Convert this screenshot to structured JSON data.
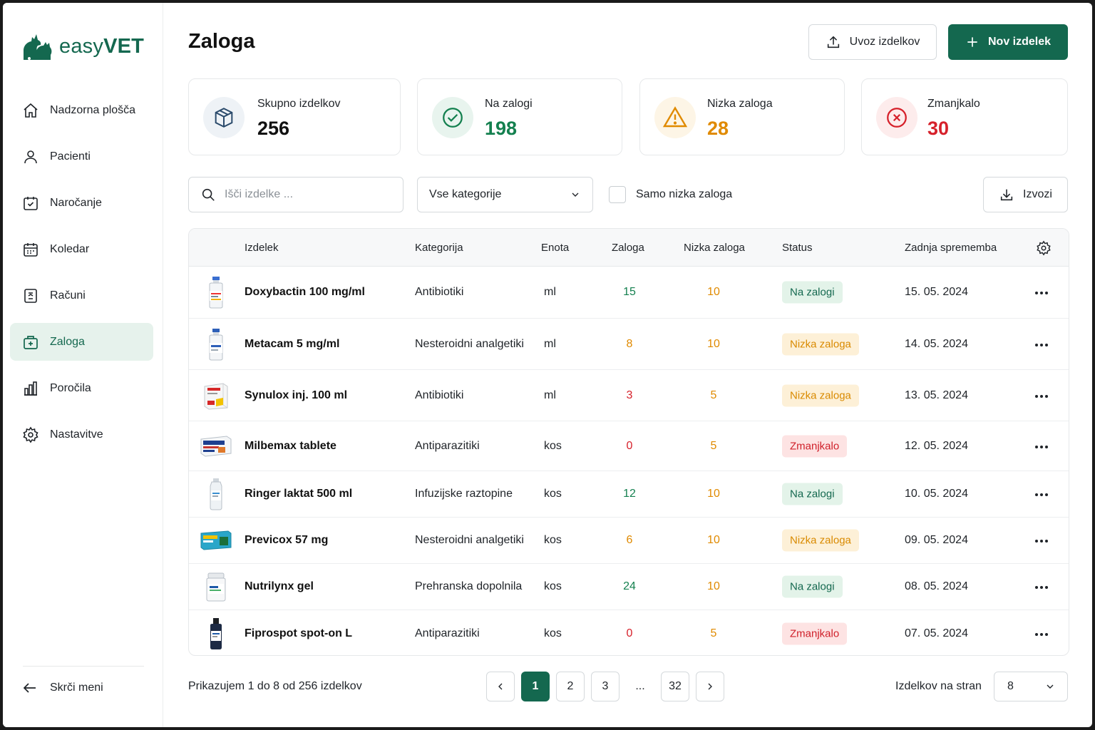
{
  "brand": {
    "name_part1": "easy",
    "name_part2": "VET",
    "accent": "#14684f"
  },
  "nav": {
    "items": [
      {
        "label": "Nadzorna plošča",
        "icon": "home-icon"
      },
      {
        "label": "Pacienti",
        "icon": "user-icon"
      },
      {
        "label": "Naročanje",
        "icon": "calendar-check-icon"
      },
      {
        "label": "Koledar",
        "icon": "calendar-icon"
      },
      {
        "label": "Računi",
        "icon": "invoice-icon"
      },
      {
        "label": "Zaloga",
        "icon": "inventory-box-icon"
      },
      {
        "label": "Poročila",
        "icon": "bar-chart-icon"
      },
      {
        "label": "Nastavitve",
        "icon": "gear-icon"
      }
    ],
    "active": "Zaloga",
    "collapse_label": "Skrči meni"
  },
  "header": {
    "title": "Zaloga",
    "import_label": "Uvoz izdelkov",
    "new_label": "Nov izdelek"
  },
  "stats": [
    {
      "label": "Skupno izdelkov",
      "value": "256",
      "icon": "box-icon",
      "color": "#1f2328"
    },
    {
      "label": "Na zalogi",
      "value": "198",
      "icon": "check-circle-icon",
      "color": "#14804f"
    },
    {
      "label": "Nizka zaloga",
      "value": "28",
      "icon": "warning-icon",
      "color": "#e08a00"
    },
    {
      "label": "Zmanjkalo",
      "value": "30",
      "icon": "x-circle-icon",
      "color": "#d6212b"
    }
  ],
  "toolbar": {
    "search_placeholder": "Išči izdelke ...",
    "category_value": "Vse kategorije",
    "low_only_label": "Samo nizka zaloga",
    "export_label": "Izvozi"
  },
  "table": {
    "columns": [
      "Izdelek",
      "Kategorija",
      "Enota",
      "Zaloga",
      "Nizka zaloga",
      "Status",
      "Zadnja sprememba"
    ],
    "rows": [
      {
        "name": "Doxybactin 100 mg/ml",
        "category": "Antibiotiki",
        "unit": "ml",
        "stock": "15",
        "low": "10",
        "status": "Na zalogi",
        "date": "15. 05. 2024"
      },
      {
        "name": "Metacam 5 mg/ml",
        "category": "Nesteroidni analgetiki",
        "unit": "ml",
        "stock": "8",
        "low": "10",
        "status": "Nizka zaloga",
        "date": "14. 05. 2024"
      },
      {
        "name": "Synulox inj. 100 ml",
        "category": "Antibiotiki",
        "unit": "ml",
        "stock": "3",
        "low": "5",
        "status": "Nizka zaloga",
        "date": "13. 05. 2024"
      },
      {
        "name": "Milbemax tablete",
        "category": "Antiparazitiki",
        "unit": "kos",
        "stock": "0",
        "low": "5",
        "status": "Zmanjkalo",
        "date": "12. 05. 2024"
      },
      {
        "name": "Ringer laktat 500 ml",
        "category": "Infuzijske raztopine",
        "unit": "kos",
        "stock": "12",
        "low": "10",
        "status": "Na zalogi",
        "date": "10. 05. 2024"
      },
      {
        "name": "Previcox 57 mg",
        "category": "Nesteroidni analgetiki",
        "unit": "kos",
        "stock": "6",
        "low": "10",
        "status": "Nizka zaloga",
        "date": "09. 05. 2024"
      },
      {
        "name": "Nutrilynx gel",
        "category": "Prehranska dopolnila",
        "unit": "kos",
        "stock": "24",
        "low": "10",
        "status": "Na zalogi",
        "date": "08. 05. 2024"
      },
      {
        "name": "Fiprospot spot-on L",
        "category": "Antiparazitiki",
        "unit": "kos",
        "stock": "0",
        "low": "5",
        "status": "Zmanjkalo",
        "date": "07. 05. 2024"
      }
    ]
  },
  "footer": {
    "info": "Prikazujem 1 do 8 od 256 izdelkov",
    "pages": [
      "1",
      "2",
      "3",
      "...",
      "32"
    ],
    "current_page": "1",
    "per_page_label": "Izdelkov na stran",
    "per_page_value": "8"
  }
}
